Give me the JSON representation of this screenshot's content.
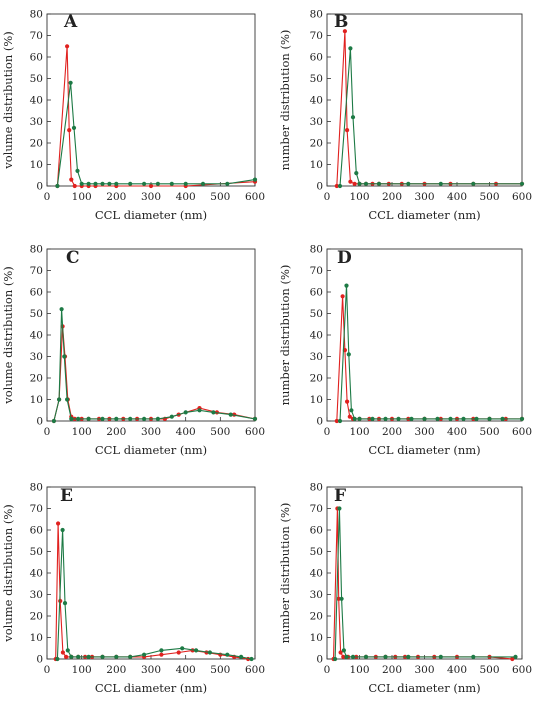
{
  "colors": {
    "red": "#e0211f",
    "green": "#1d7a45"
  },
  "chart_data": [
    {
      "panel": "A",
      "type": "line",
      "xlabel": "CCL diameter  (nm)",
      "ylabel": "volume distribution  (%)",
      "xlim": [
        0,
        600
      ],
      "ylim": [
        0,
        80
      ],
      "xticks": [
        0,
        100,
        200,
        300,
        400,
        500,
        600
      ],
      "yticks": [
        0,
        10,
        20,
        30,
        40,
        50,
        60,
        70,
        80
      ],
      "series": [
        {
          "color": "red",
          "points": [
            [
              30,
              0
            ],
            [
              58,
              65
            ],
            [
              64,
              26
            ],
            [
              70,
              3
            ],
            [
              80,
              0
            ],
            [
              100,
              0
            ],
            [
              120,
              0
            ],
            [
              140,
              0
            ],
            [
              200,
              0
            ],
            [
              300,
              0
            ],
            [
              400,
              0
            ],
            [
              600,
              2
            ]
          ]
        },
        {
          "color": "green",
          "points": [
            [
              30,
              0
            ],
            [
              68,
              48
            ],
            [
              78,
              27
            ],
            [
              88,
              7
            ],
            [
              100,
              1
            ],
            [
              120,
              1
            ],
            [
              140,
              1
            ],
            [
              160,
              1
            ],
            [
              180,
              1
            ],
            [
              200,
              1
            ],
            [
              240,
              1
            ],
            [
              280,
              1
            ],
            [
              320,
              1
            ],
            [
              360,
              1
            ],
            [
              400,
              1
            ],
            [
              450,
              1
            ],
            [
              520,
              1
            ],
            [
              600,
              3
            ]
          ]
        }
      ]
    },
    {
      "panel": "B",
      "type": "line",
      "xlabel": "CCL diameter  (nm)",
      "ylabel": "number  distribution  (%)",
      "xlim": [
        0,
        600
      ],
      "ylim": [
        0,
        80
      ],
      "xticks": [
        0,
        100,
        200,
        300,
        400,
        500,
        600
      ],
      "yticks": [
        0,
        10,
        20,
        30,
        40,
        50,
        60,
        70,
        80
      ],
      "series": [
        {
          "color": "red",
          "points": [
            [
              30,
              0
            ],
            [
              55,
              72
            ],
            [
              62,
              26
            ],
            [
              72,
              2
            ],
            [
              85,
              1
            ],
            [
              100,
              1
            ],
            [
              120,
              1
            ],
            [
              140,
              1
            ],
            [
              160,
              1
            ],
            [
              190,
              1
            ],
            [
              230,
              1
            ],
            [
              300,
              1
            ],
            [
              380,
              1
            ],
            [
              450,
              1
            ],
            [
              520,
              1
            ],
            [
              600,
              1
            ]
          ]
        },
        {
          "color": "green",
          "points": [
            [
              40,
              0
            ],
            [
              72,
              64
            ],
            [
              80,
              32
            ],
            [
              90,
              6
            ],
            [
              100,
              1
            ],
            [
              120,
              1
            ],
            [
              160,
              1
            ],
            [
              250,
              1
            ],
            [
              350,
              1
            ],
            [
              450,
              1
            ],
            [
              600,
              1
            ]
          ]
        }
      ]
    },
    {
      "panel": "C",
      "type": "line",
      "xlabel": "CCL diameter  (nm)",
      "ylabel": "volume  distribution  (%)",
      "xlim": [
        0,
        600
      ],
      "ylim": [
        0,
        80
      ],
      "xticks": [
        0,
        100,
        200,
        300,
        400,
        500,
        600
      ],
      "yticks": [
        0,
        10,
        20,
        30,
        40,
        50,
        60,
        70,
        80
      ],
      "series": [
        {
          "color": "red",
          "points": [
            [
              20,
              0
            ],
            [
              35,
              10
            ],
            [
              45,
              44
            ],
            [
              52,
              30
            ],
            [
              60,
              10
            ],
            [
              70,
              2
            ],
            [
              80,
              1
            ],
            [
              100,
              1
            ],
            [
              120,
              1
            ],
            [
              150,
              1
            ],
            [
              180,
              1
            ],
            [
              220,
              1
            ],
            [
              260,
              1
            ],
            [
              300,
              1
            ],
            [
              340,
              1
            ],
            [
              380,
              3
            ],
            [
              440,
              6
            ],
            [
              490,
              4
            ],
            [
              540,
              3
            ],
            [
              600,
              1
            ]
          ]
        },
        {
          "color": "green",
          "points": [
            [
              20,
              0
            ],
            [
              35,
              10
            ],
            [
              42,
              52
            ],
            [
              50,
              30
            ],
            [
              58,
              10
            ],
            [
              70,
              1
            ],
            [
              90,
              1
            ],
            [
              120,
              1
            ],
            [
              160,
              1
            ],
            [
              200,
              1
            ],
            [
              240,
              1
            ],
            [
              280,
              1
            ],
            [
              320,
              1
            ],
            [
              360,
              2
            ],
            [
              400,
              4
            ],
            [
              440,
              5
            ],
            [
              480,
              4
            ],
            [
              530,
              3
            ],
            [
              600,
              1
            ]
          ]
        }
      ]
    },
    {
      "panel": "D",
      "type": "line",
      "xlabel": "CCL diameter  (nm)",
      "ylabel": "number  distribution  (%)",
      "xlim": [
        0,
        600
      ],
      "ylim": [
        0,
        80
      ],
      "xticks": [
        0,
        100,
        200,
        300,
        400,
        500,
        600
      ],
      "yticks": [
        0,
        10,
        20,
        30,
        40,
        50,
        60,
        70,
        80
      ],
      "series": [
        {
          "color": "red",
          "points": [
            [
              30,
              0
            ],
            [
              48,
              58
            ],
            [
              55,
              33
            ],
            [
              62,
              9
            ],
            [
              70,
              2
            ],
            [
              80,
              1
            ],
            [
              100,
              1
            ],
            [
              130,
              1
            ],
            [
              160,
              1
            ],
            [
              200,
              1
            ],
            [
              250,
              1
            ],
            [
              300,
              1
            ],
            [
              350,
              1
            ],
            [
              400,
              1
            ],
            [
              450,
              1
            ],
            [
              500,
              1
            ],
            [
              550,
              1
            ],
            [
              600,
              1
            ]
          ]
        },
        {
          "color": "green",
          "points": [
            [
              40,
              0
            ],
            [
              60,
              63
            ],
            [
              67,
              31
            ],
            [
              75,
              5
            ],
            [
              85,
              1
            ],
            [
              100,
              1
            ],
            [
              140,
              1
            ],
            [
              180,
              1
            ],
            [
              220,
              1
            ],
            [
              260,
              1
            ],
            [
              300,
              1
            ],
            [
              340,
              1
            ],
            [
              380,
              1
            ],
            [
              420,
              1
            ],
            [
              460,
              1
            ],
            [
              500,
              1
            ],
            [
              540,
              1
            ],
            [
              600,
              1
            ]
          ]
        }
      ]
    },
    {
      "panel": "E",
      "type": "line",
      "xlabel": "CCL diameter  (nm)",
      "ylabel": "volume  distribution  (%)",
      "xlim": [
        0,
        600
      ],
      "ylim": [
        0,
        80
      ],
      "xticks": [
        0,
        100,
        200,
        300,
        400,
        500,
        600
      ],
      "yticks": [
        0,
        10,
        20,
        30,
        40,
        50,
        60,
        70,
        80
      ],
      "series": [
        {
          "color": "red",
          "points": [
            [
              25,
              0
            ],
            [
              32,
              63
            ],
            [
              38,
              27
            ],
            [
              46,
              3
            ],
            [
              55,
              1
            ],
            [
              70,
              1
            ],
            [
              90,
              1
            ],
            [
              110,
              1
            ],
            [
              130,
              1
            ],
            [
              160,
              1
            ],
            [
              200,
              1
            ],
            [
              240,
              1
            ],
            [
              280,
              1
            ],
            [
              330,
              2
            ],
            [
              380,
              3
            ],
            [
              420,
              4
            ],
            [
              460,
              3
            ],
            [
              500,
              2
            ],
            [
              540,
              1
            ],
            [
              580,
              0
            ]
          ]
        },
        {
          "color": "green",
          "points": [
            [
              30,
              0
            ],
            [
              45,
              60
            ],
            [
              52,
              26
            ],
            [
              60,
              4
            ],
            [
              70,
              1
            ],
            [
              90,
              1
            ],
            [
              120,
              1
            ],
            [
              160,
              1
            ],
            [
              200,
              1
            ],
            [
              240,
              1
            ],
            [
              280,
              2
            ],
            [
              330,
              4
            ],
            [
              390,
              5
            ],
            [
              430,
              4
            ],
            [
              470,
              3
            ],
            [
              520,
              2
            ],
            [
              560,
              1
            ],
            [
              590,
              0
            ]
          ]
        }
      ]
    },
    {
      "panel": "F",
      "type": "line",
      "xlabel": "CCL diameter  (nm)",
      "ylabel": "number  distribution  (%)",
      "xlim": [
        0,
        600
      ],
      "ylim": [
        0,
        80
      ],
      "xticks": [
        0,
        100,
        200,
        300,
        400,
        500,
        600
      ],
      "yticks": [
        0,
        10,
        20,
        30,
        40,
        50,
        60,
        70,
        80
      ],
      "series": [
        {
          "color": "red",
          "points": [
            [
              20,
              0
            ],
            [
              32,
              70
            ],
            [
              36,
              28
            ],
            [
              42,
              3
            ],
            [
              50,
              1
            ],
            [
              65,
              1
            ],
            [
              90,
              1
            ],
            [
              120,
              1
            ],
            [
              150,
              1
            ],
            [
              180,
              1
            ],
            [
              210,
              1
            ],
            [
              240,
              1
            ],
            [
              280,
              1
            ],
            [
              330,
              1
            ],
            [
              400,
              1
            ],
            [
              500,
              1
            ],
            [
              570,
              0
            ]
          ]
        },
        {
          "color": "green",
          "points": [
            [
              25,
              0
            ],
            [
              38,
              70
            ],
            [
              45,
              28
            ],
            [
              52,
              4
            ],
            [
              60,
              1
            ],
            [
              80,
              1
            ],
            [
              120,
              1
            ],
            [
              180,
              1
            ],
            [
              250,
              1
            ],
            [
              350,
              1
            ],
            [
              450,
              1
            ],
            [
              580,
              1
            ]
          ]
        }
      ]
    }
  ]
}
